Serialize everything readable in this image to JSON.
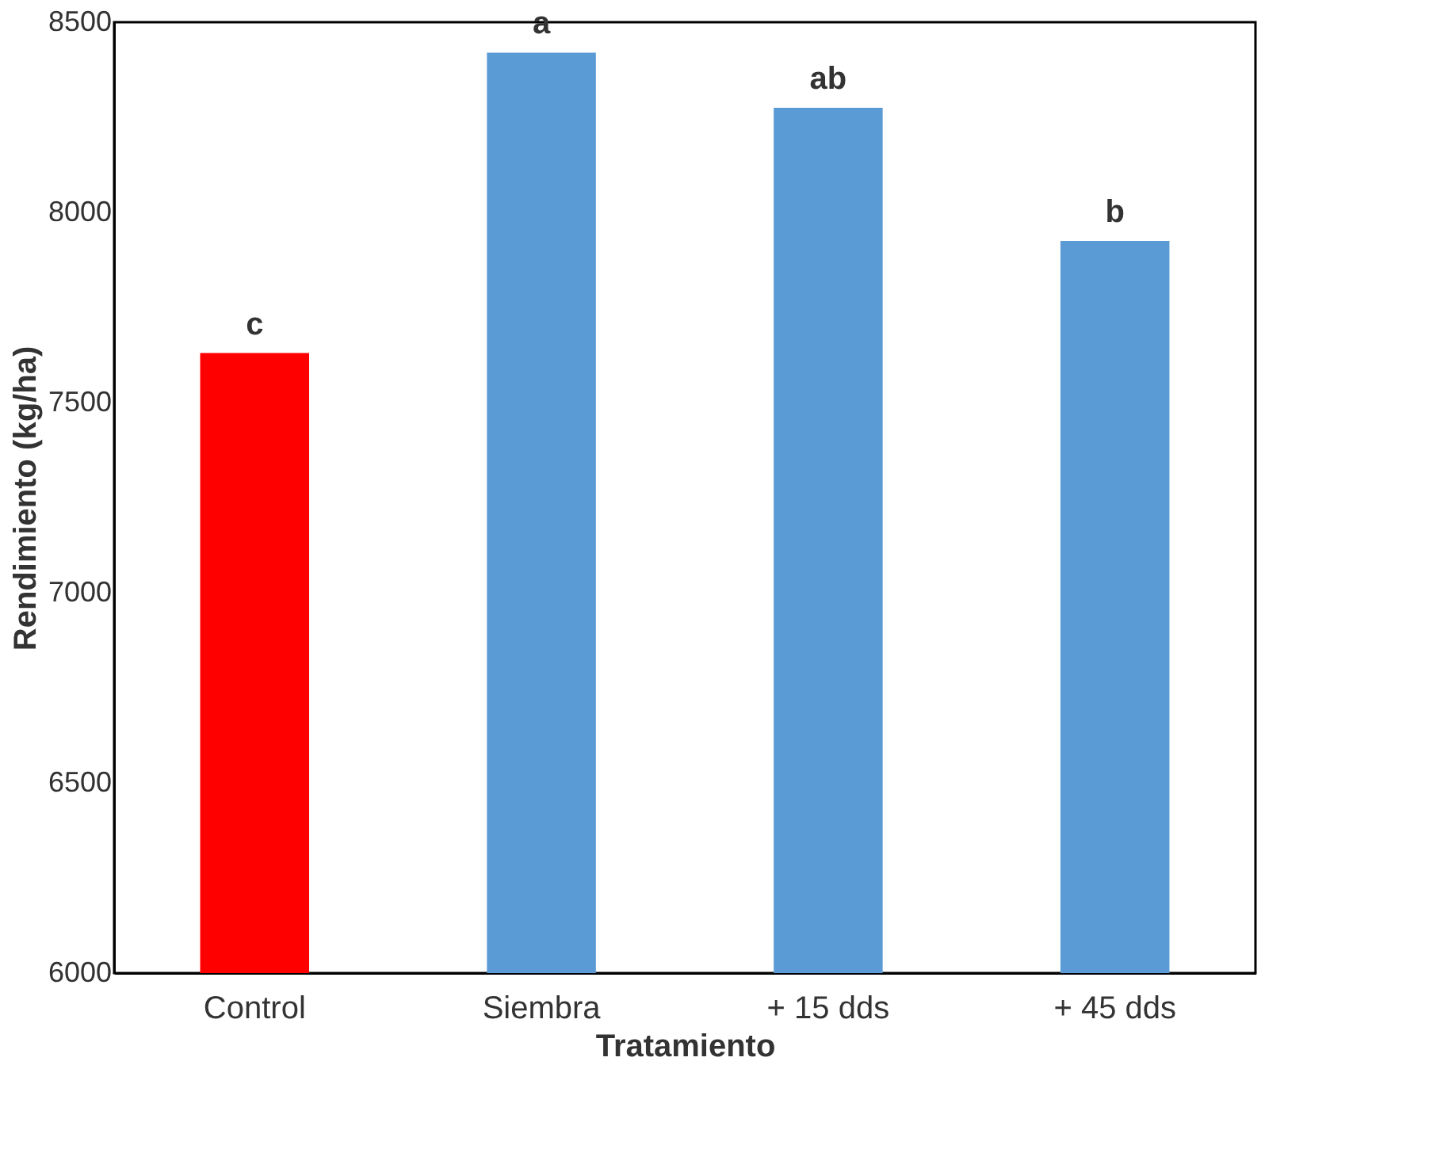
{
  "chart_data": {
    "type": "bar",
    "xlabel": "Tratamiento",
    "ylabel": "Rendimiento (kg/ha)",
    "categories": [
      "Control",
      "Siembra",
      "+ 15 dds",
      "+ 45 dds"
    ],
    "values": [
      7630,
      8420,
      8275,
      7925
    ],
    "colors": [
      "#ff0000",
      "#5b9bd5",
      "#5b9bd5",
      "#5b9bd5"
    ],
    "ylim": [
      6000,
      8500
    ],
    "yticks": [
      6000,
      6500,
      7000,
      7500,
      8000,
      8500
    ],
    "grid": false,
    "legend": false,
    "annotations": [
      "c",
      "a",
      "ab",
      "b"
    ]
  }
}
